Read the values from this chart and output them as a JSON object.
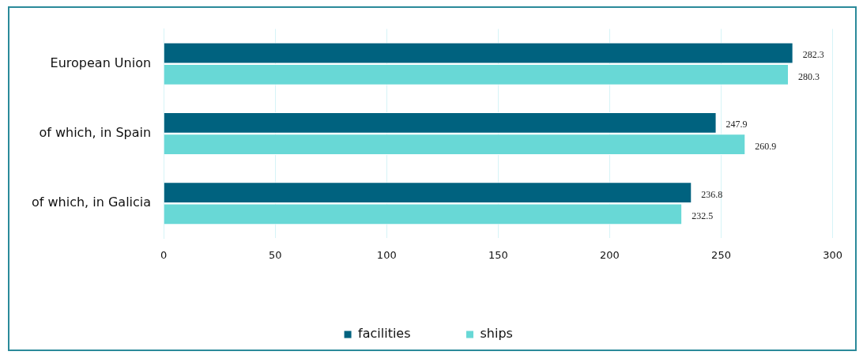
{
  "chart_data": {
    "type": "bar",
    "orientation": "horizontal",
    "categories": [
      "European Union",
      "of which, in Spain",
      "of which, in Galicia"
    ],
    "series": [
      {
        "name": "facilities",
        "color": "#00627f",
        "values": [
          282.3,
          247.9,
          236.8
        ]
      },
      {
        "name": "ships",
        "color": "#68d8d6",
        "values": [
          280.3,
          260.9,
          232.5
        ]
      }
    ],
    "xlim": [
      0,
      300
    ],
    "xticks": [
      0,
      50,
      100,
      150,
      200,
      250,
      300
    ],
    "grid": "x",
    "legend": "bottom",
    "data_labels": true
  }
}
